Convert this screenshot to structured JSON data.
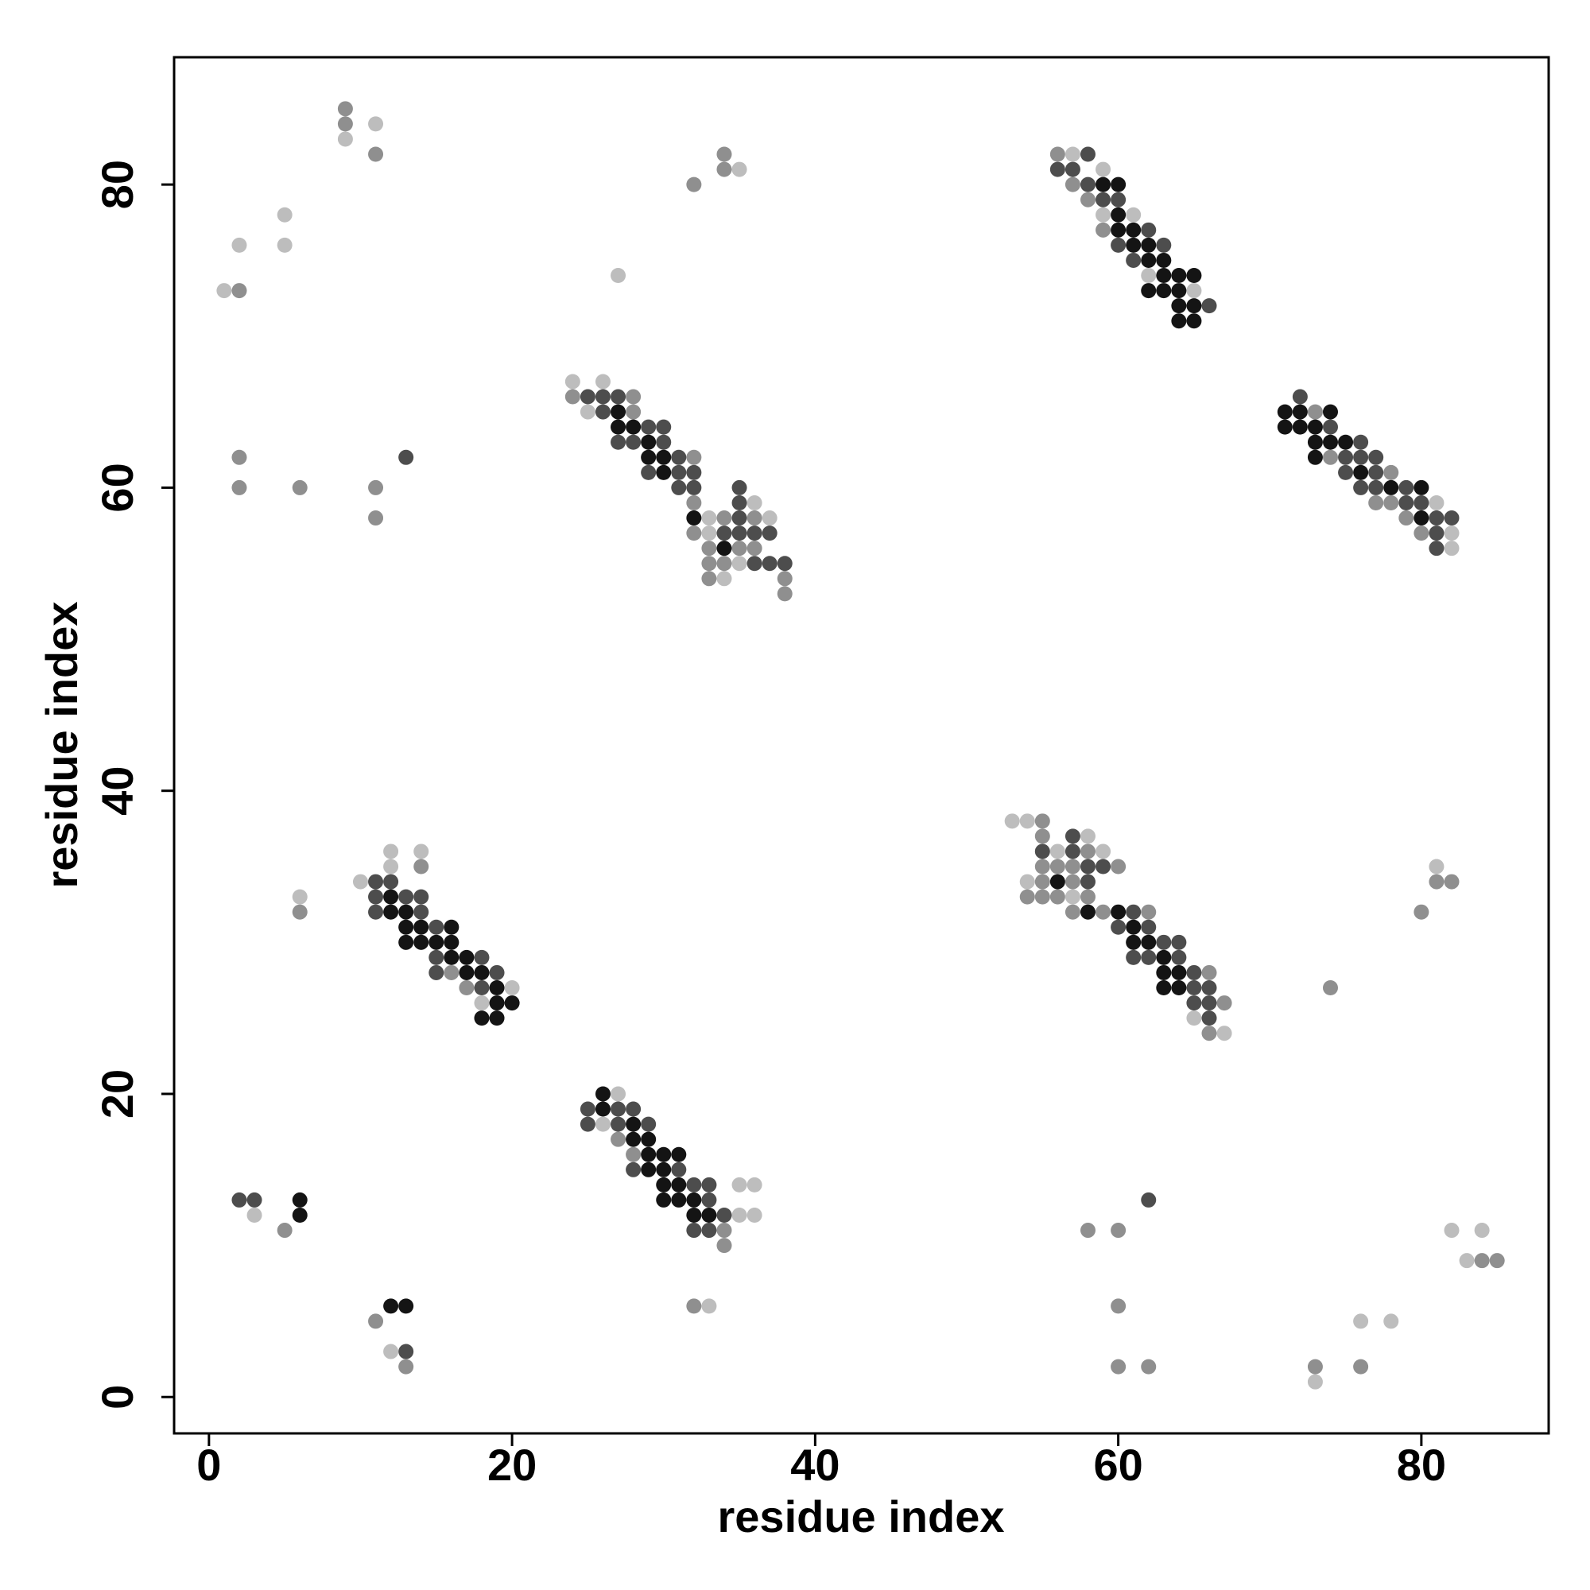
{
  "chart_data": {
    "type": "scatter",
    "xlabel": "residue index",
    "ylabel": "residue index",
    "xlim": [
      -2.3,
      88.4
    ],
    "ylim": [
      -2.4,
      88.4
    ],
    "xticks": [
      0,
      20,
      40,
      60,
      80
    ],
    "yticks": [
      0,
      20,
      40,
      60,
      80
    ],
    "series": [
      {
        "color": "#bdbdbd",
        "x": [
          9,
          11,
          5,
          5,
          1,
          27,
          35,
          57,
          59,
          59,
          61,
          62,
          65,
          24,
          26,
          25,
          36,
          33,
          37,
          33,
          35,
          34,
          81,
          82,
          82,
          12,
          14,
          12,
          10,
          20,
          18,
          6,
          53,
          54,
          58,
          56,
          59,
          54,
          57,
          65,
          67,
          81,
          27,
          26,
          35,
          36,
          35,
          36,
          3,
          12,
          33,
          82,
          84,
          83,
          76,
          78,
          73,
          2
        ],
        "y": [
          83,
          84,
          78,
          76,
          73,
          74,
          81,
          82,
          81,
          78,
          78,
          74,
          73,
          67,
          67,
          65,
          59,
          58,
          58,
          57,
          55,
          54,
          59,
          57,
          56,
          36,
          36,
          35,
          34,
          27,
          26,
          33,
          38,
          38,
          37,
          36,
          36,
          34,
          33,
          25,
          24,
          35,
          20,
          18,
          14,
          14,
          12,
          12,
          12,
          3,
          6,
          11,
          11,
          9,
          5,
          5,
          1,
          76
        ]
      },
      {
        "color": "#8f8f8f",
        "x": [
          9,
          9,
          11,
          2,
          2,
          2,
          6,
          11,
          11,
          32,
          34,
          34,
          56,
          57,
          58,
          59,
          24,
          28,
          28,
          32,
          32,
          34,
          36,
          32,
          33,
          35,
          36,
          33,
          34,
          33,
          38,
          38,
          73,
          74,
          78,
          77,
          78,
          79,
          80,
          14,
          16,
          17,
          6,
          55,
          55,
          58,
          55,
          56,
          57,
          60,
          55,
          57,
          54,
          55,
          56,
          58,
          57,
          59,
          62,
          66,
          67,
          66,
          81,
          82,
          80,
          74,
          27,
          28,
          34,
          34,
          5,
          11,
          13,
          32,
          58,
          60,
          84,
          85,
          60,
          60,
          62,
          73,
          76
        ],
        "y": [
          85,
          84,
          82,
          73,
          62,
          60,
          60,
          60,
          58,
          80,
          82,
          81,
          82,
          80,
          79,
          77,
          66,
          66,
          65,
          62,
          59,
          58,
          58,
          57,
          56,
          56,
          56,
          55,
          55,
          54,
          54,
          53,
          65,
          62,
          61,
          59,
          59,
          58,
          57,
          35,
          28,
          27,
          32,
          38,
          37,
          36,
          35,
          35,
          35,
          35,
          34,
          34,
          33,
          33,
          33,
          33,
          32,
          32,
          32,
          28,
          26,
          24,
          34,
          34,
          32,
          27,
          17,
          16,
          11,
          10,
          11,
          5,
          2,
          6,
          11,
          11,
          9,
          9,
          6,
          2,
          2,
          2,
          2
        ]
      },
      {
        "color": "#4d4d4d",
        "x": [
          13,
          58,
          56,
          57,
          58,
          59,
          60,
          62,
          60,
          63,
          61,
          66,
          25,
          26,
          27,
          26,
          29,
          30,
          27,
          28,
          30,
          31,
          29,
          31,
          32,
          31,
          32,
          35,
          35,
          35,
          34,
          35,
          36,
          37,
          36,
          37,
          38,
          72,
          74,
          76,
          75,
          76,
          77,
          75,
          77,
          76,
          77,
          79,
          79,
          80,
          81,
          82,
          81,
          81,
          11,
          12,
          11,
          13,
          14,
          11,
          14,
          15,
          15,
          18,
          15,
          19,
          18,
          57,
          55,
          57,
          58,
          59,
          58,
          61,
          60,
          62,
          63,
          64,
          61,
          62,
          64,
          65,
          65,
          66,
          65,
          66,
          66,
          25,
          27,
          28,
          25,
          27,
          29,
          28,
          31,
          32,
          33,
          33,
          34,
          32,
          33,
          2,
          3,
          13,
          62
        ],
        "y": [
          62,
          82,
          81,
          81,
          80,
          79,
          79,
          77,
          76,
          76,
          75,
          72,
          66,
          66,
          66,
          65,
          64,
          64,
          63,
          63,
          63,
          62,
          61,
          61,
          61,
          60,
          60,
          60,
          59,
          58,
          57,
          57,
          57,
          57,
          55,
          55,
          55,
          66,
          64,
          63,
          62,
          62,
          62,
          61,
          61,
          60,
          60,
          60,
          59,
          59,
          58,
          58,
          57,
          56,
          34,
          34,
          33,
          33,
          33,
          32,
          32,
          31,
          29,
          29,
          28,
          28,
          27,
          37,
          36,
          36,
          35,
          35,
          34,
          32,
          31,
          31,
          30,
          30,
          29,
          29,
          29,
          28,
          27,
          27,
          26,
          26,
          25,
          19,
          19,
          19,
          18,
          18,
          18,
          15,
          15,
          14,
          14,
          13,
          12,
          11,
          11,
          13,
          13,
          3,
          13
        ]
      },
      {
        "color": "#141414",
        "x": [
          59,
          60,
          60,
          60,
          61,
          61,
          62,
          62,
          63,
          63,
          64,
          65,
          62,
          63,
          64,
          64,
          65,
          64,
          65,
          27,
          27,
          28,
          29,
          29,
          30,
          30,
          32,
          34,
          71,
          72,
          74,
          71,
          72,
          73,
          73,
          74,
          75,
          73,
          76,
          78,
          80,
          80,
          12,
          12,
          13,
          13,
          14,
          16,
          13,
          14,
          15,
          16,
          16,
          17,
          17,
          18,
          19,
          19,
          20,
          18,
          19,
          56,
          58,
          60,
          61,
          61,
          62,
          63,
          63,
          64,
          63,
          64,
          26,
          26,
          28,
          28,
          29,
          29,
          30,
          31,
          29,
          30,
          30,
          31,
          30,
          31,
          32,
          32,
          33,
          6,
          6,
          12,
          13
        ],
        "y": [
          80,
          80,
          78,
          77,
          77,
          76,
          76,
          75,
          75,
          74,
          74,
          74,
          73,
          73,
          73,
          72,
          72,
          71,
          71,
          65,
          64,
          64,
          63,
          62,
          62,
          61,
          58,
          56,
          65,
          65,
          65,
          64,
          64,
          64,
          63,
          63,
          63,
          62,
          61,
          60,
          60,
          58,
          33,
          32,
          32,
          31,
          31,
          31,
          30,
          30,
          30,
          30,
          29,
          29,
          28,
          28,
          27,
          26,
          26,
          25,
          25,
          34,
          32,
          32,
          31,
          30,
          30,
          29,
          28,
          28,
          27,
          27,
          20,
          19,
          18,
          17,
          17,
          16,
          16,
          16,
          15,
          15,
          14,
          14,
          13,
          13,
          13,
          12,
          12,
          13,
          12,
          6,
          6
        ]
      }
    ]
  }
}
